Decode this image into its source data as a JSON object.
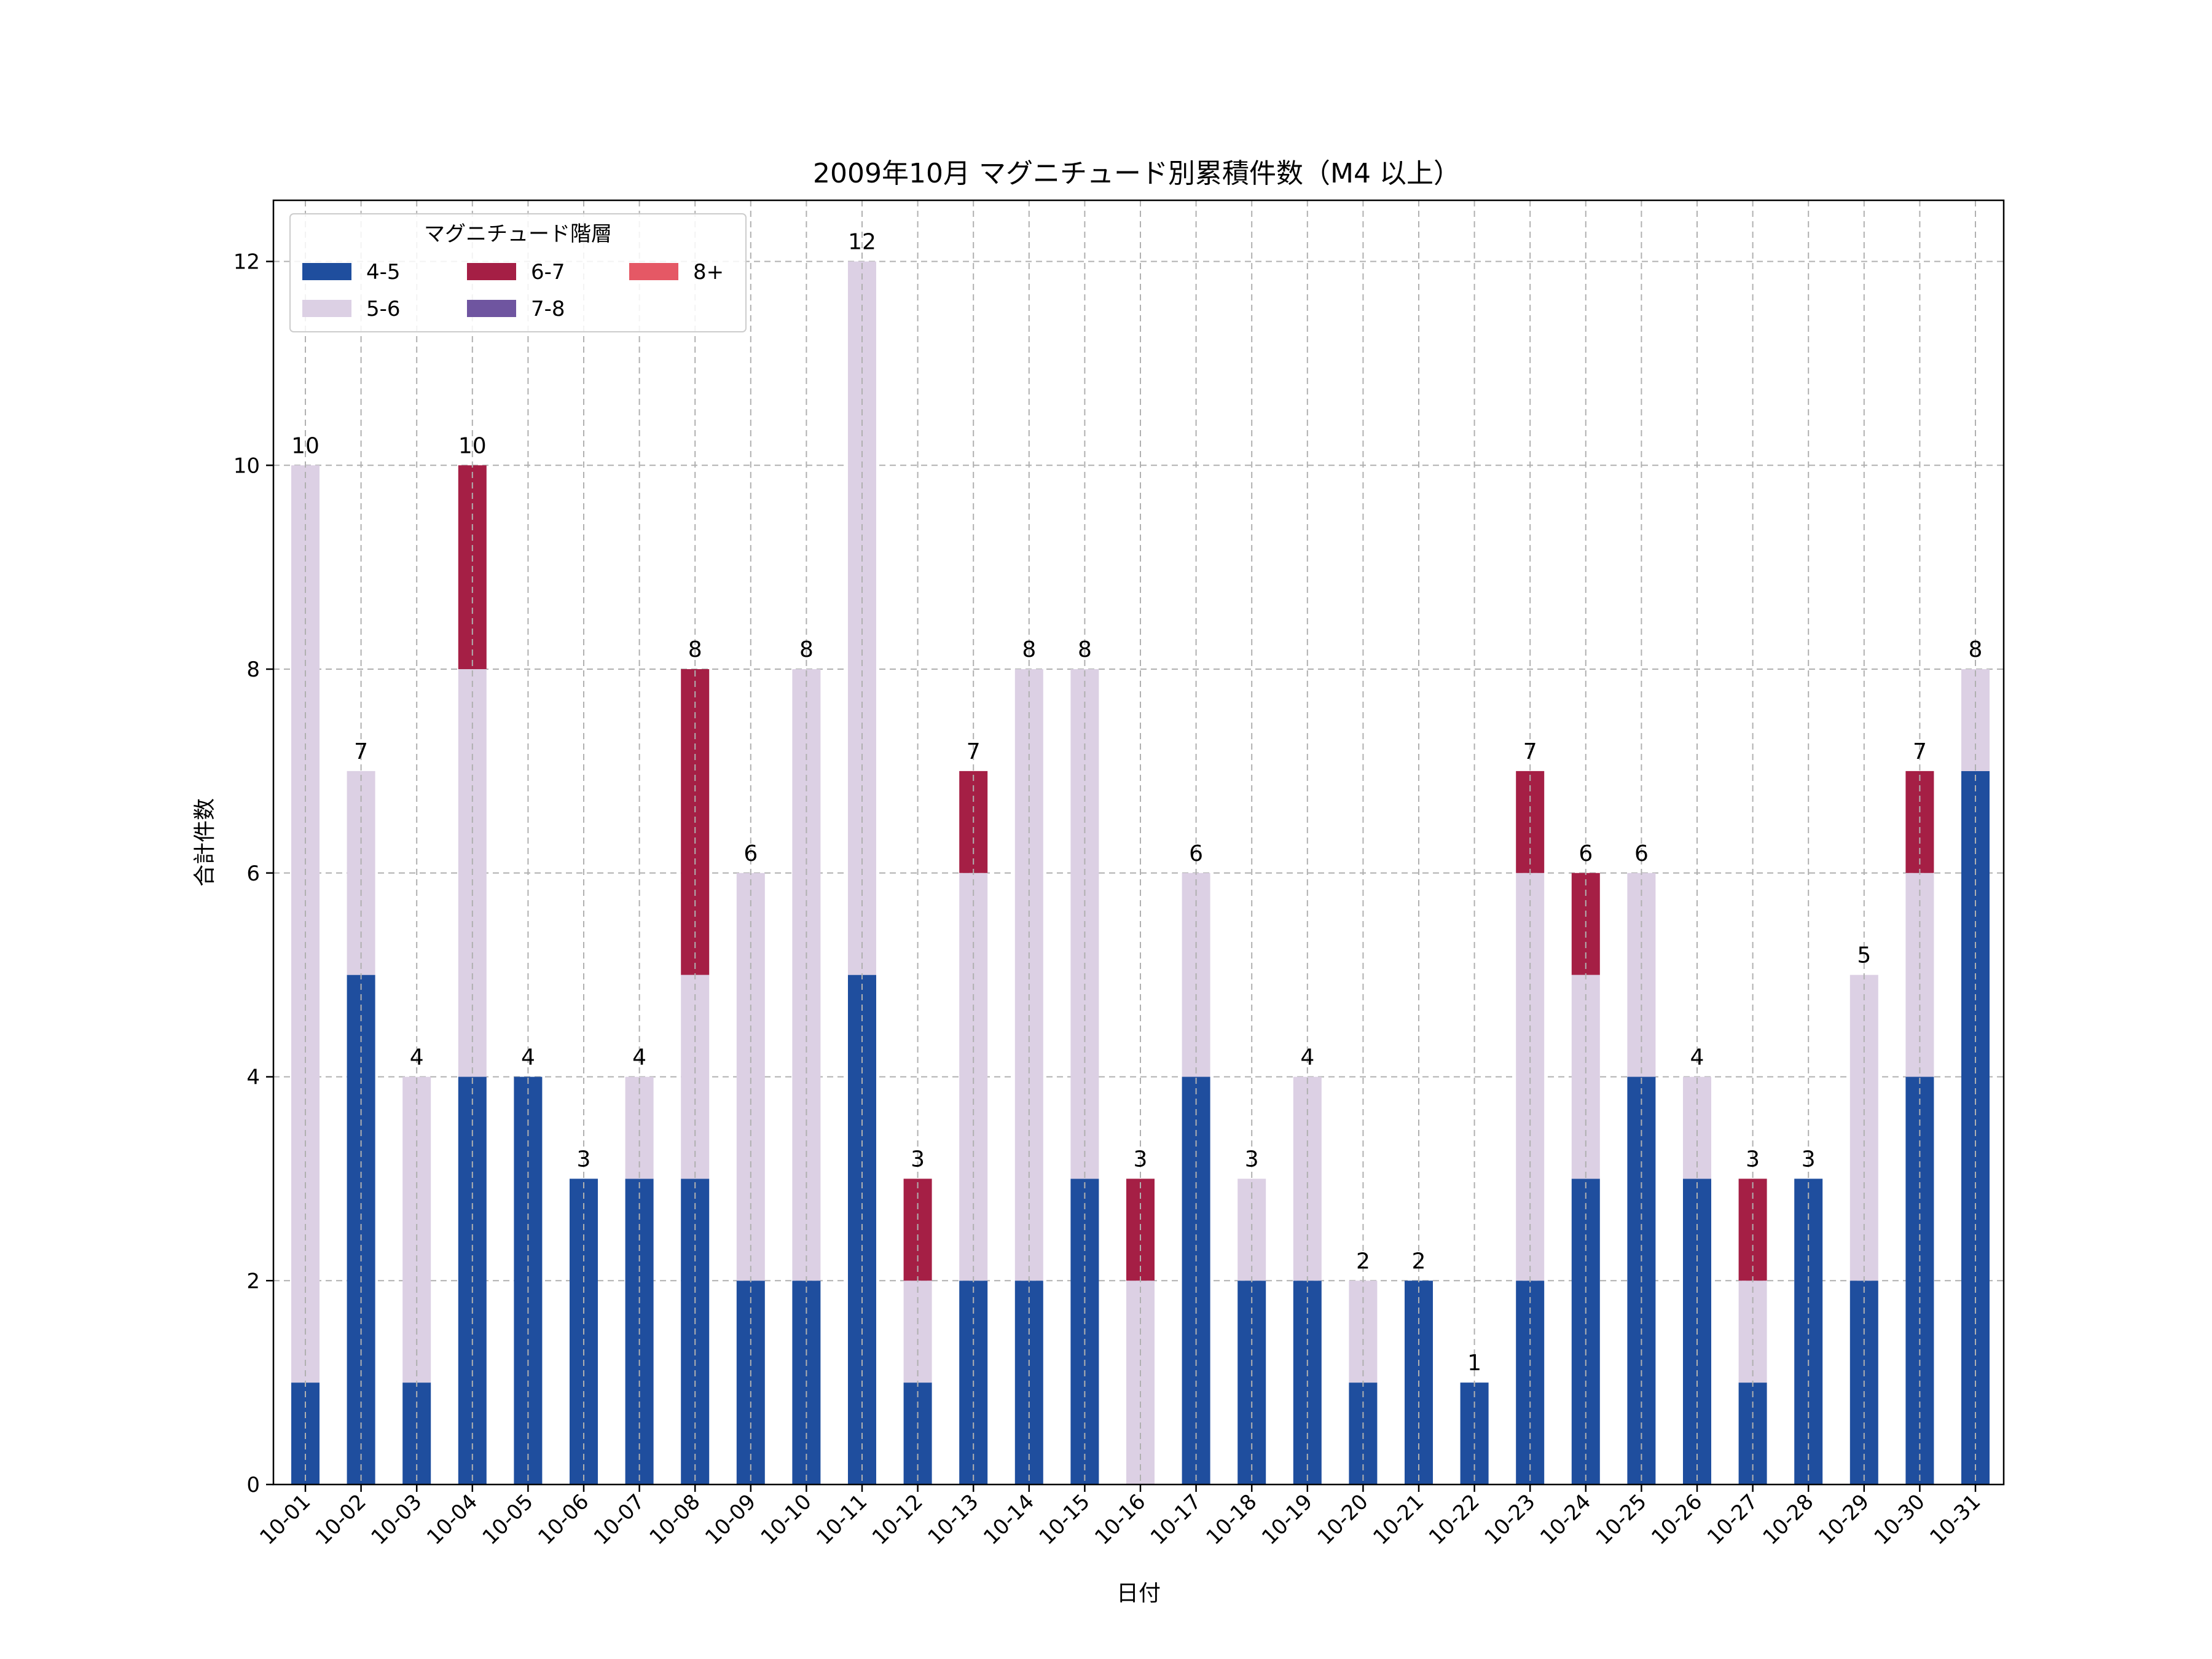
{
  "chart_data": {
    "type": "bar",
    "stacked": true,
    "title": "2009年10月 マグニチュード別累積件数（M4 以上）",
    "xlabel": "日付",
    "ylabel": "合計件数",
    "ylim": [
      0,
      12.6
    ],
    "yticks": [
      0,
      2,
      4,
      6,
      8,
      10,
      12
    ],
    "grid": true,
    "legend": {
      "title": "マグニチュード階層",
      "position": "top-left"
    },
    "categories": [
      "10-01",
      "10-02",
      "10-03",
      "10-04",
      "10-05",
      "10-06",
      "10-07",
      "10-08",
      "10-09",
      "10-10",
      "10-11",
      "10-12",
      "10-13",
      "10-14",
      "10-15",
      "10-16",
      "10-17",
      "10-18",
      "10-19",
      "10-20",
      "10-21",
      "10-22",
      "10-23",
      "10-24",
      "10-25",
      "10-26",
      "10-27",
      "10-28",
      "10-29",
      "10-30",
      "10-31"
    ],
    "series": [
      {
        "name": "4-5",
        "color": "#1f4e9e",
        "values": [
          1,
          5,
          1,
          4,
          4,
          3,
          3,
          3,
          2,
          2,
          5,
          1,
          2,
          2,
          3,
          0,
          4,
          2,
          2,
          1,
          2,
          1,
          2,
          3,
          4,
          3,
          1,
          3,
          2,
          4,
          7
        ]
      },
      {
        "name": "5-6",
        "color": "#dcd0e4",
        "values": [
          9,
          2,
          3,
          4,
          0,
          0,
          1,
          2,
          4,
          6,
          7,
          1,
          4,
          6,
          5,
          2,
          2,
          1,
          2,
          1,
          0,
          0,
          4,
          2,
          2,
          1,
          1,
          0,
          3,
          2,
          1
        ]
      },
      {
        "name": "6-7",
        "color": "#a51f45",
        "values": [
          0,
          0,
          0,
          2,
          0,
          0,
          0,
          3,
          0,
          0,
          0,
          1,
          1,
          0,
          0,
          1,
          0,
          0,
          0,
          0,
          0,
          0,
          1,
          1,
          0,
          0,
          1,
          0,
          0,
          1,
          0
        ]
      },
      {
        "name": "7-8",
        "color": "#6f55a0",
        "values": [
          0,
          0,
          0,
          0,
          0,
          0,
          0,
          0,
          0,
          0,
          0,
          0,
          0,
          0,
          0,
          0,
          0,
          0,
          0,
          0,
          0,
          0,
          0,
          0,
          0,
          0,
          0,
          0,
          0,
          0,
          0
        ]
      },
      {
        "name": "8+",
        "color": "#e55865",
        "values": [
          0,
          0,
          0,
          0,
          0,
          0,
          0,
          0,
          0,
          0,
          0,
          0,
          0,
          0,
          0,
          0,
          0,
          0,
          0,
          0,
          0,
          0,
          0,
          0,
          0,
          0,
          0,
          0,
          0,
          0,
          0
        ]
      }
    ],
    "totals": [
      10,
      7,
      4,
      10,
      4,
      3,
      4,
      8,
      6,
      8,
      12,
      3,
      7,
      8,
      8,
      3,
      6,
      3,
      4,
      2,
      2,
      1,
      7,
      6,
      6,
      4,
      3,
      3,
      5,
      7,
      8
    ]
  }
}
